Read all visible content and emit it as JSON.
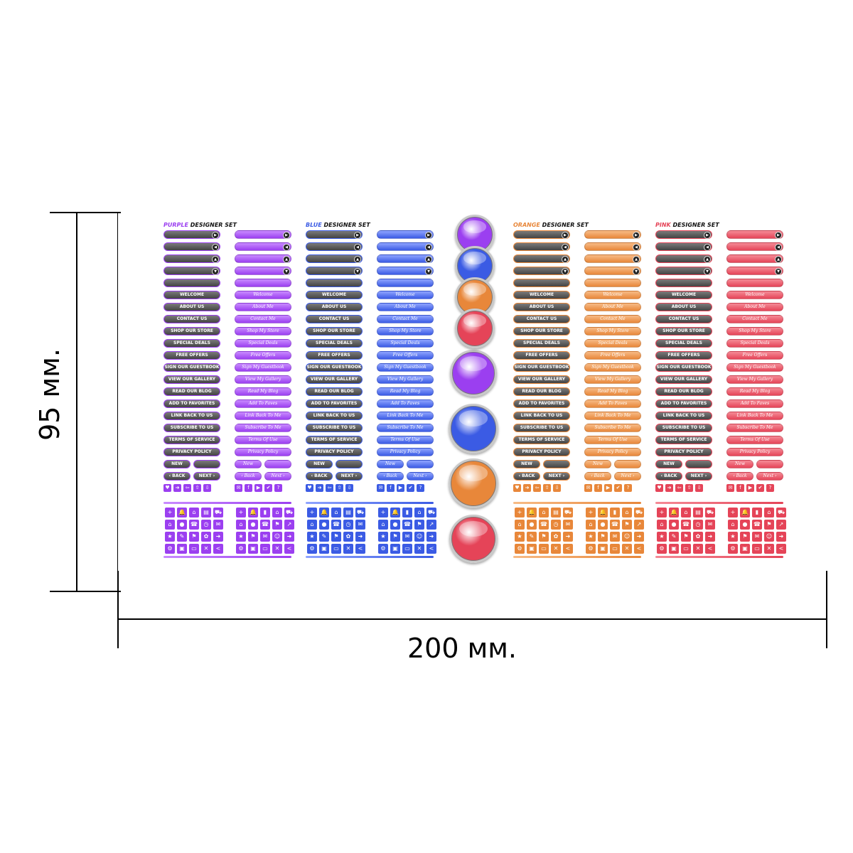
{
  "dimensions": {
    "height_label": "95 мм.",
    "width_label": "200 мм."
  },
  "sets": [
    {
      "prefix": "PURPLE",
      "suffix": " DESIGNER SET",
      "color": "#9b3ff0",
      "light": "#c98bff"
    },
    {
      "prefix": "BLUE",
      "suffix": " DESIGNER SET",
      "color": "#3b5be4",
      "light": "#8fa4ff"
    },
    {
      "prefix": "ORANGE",
      "suffix": " DESIGNER SET",
      "color": "#e8873a",
      "light": "#f7bb86"
    },
    {
      "prefix": "PINK",
      "suffix": " DESIGNER SET",
      "color": "#e54458",
      "light": "#f58a96"
    }
  ],
  "plain_buttons": [
    "WELCOME",
    "ABOUT US",
    "CONTACT US",
    "SHOP OUR STORE",
    "SPECIAL DEALS",
    "FREE OFFERS",
    "SIGN OUR GUESTBOOK",
    "VIEW OUR GALLERY",
    "READ OUR BLOG",
    "ADD TO FAVORITES",
    "LINK BACK TO US",
    "SUBSCRIBE TO US",
    "TERMS OF SERVICE",
    "PRIVACY POLICY"
  ],
  "plain_new": "NEW",
  "plain_back": "‹ BACK",
  "plain_next": "NEXT ›",
  "script_buttons": [
    "Welcome",
    "About Me",
    "Contact Me",
    "Shop My Store",
    "Special Deals",
    "Free Offers",
    "Sign My Guestbook",
    "View My Gallery",
    "Read My Blog",
    "Add To Faves",
    "Link Back To Me",
    "Subscribe To Me",
    "Terms Of Use",
    "Privacy Policy"
  ],
  "script_new": "New",
  "script_back": "‹ Back",
  "script_next": "Next ›",
  "circles": [
    "#9b3ff0",
    "#3b5be4",
    "#e8873a",
    "#e54458"
  ],
  "bar_icons": [
    "▶",
    "◀",
    "▲",
    "▼"
  ],
  "icon_row_left": [
    "♥",
    "➜",
    "⇦",
    "⇧",
    "⇩"
  ],
  "icon_row_right": [
    "✉",
    "f",
    "▶",
    "✔",
    "?"
  ],
  "grid_icons_left": [
    "+",
    "🔔",
    "⌂",
    "▤",
    "⛟",
    "⌂",
    "●",
    "☎",
    "◷",
    "✉",
    "★",
    "✎",
    "⚑",
    "✿",
    "➜",
    "⚙",
    "▣",
    "▭",
    "✕",
    "<"
  ],
  "grid_icons_right": [
    "+",
    "🔔",
    "▮",
    "⌂",
    "⛟",
    "⌂",
    "●",
    "☎",
    "⚑",
    "↗",
    "★",
    "⚑",
    "✉",
    "☺",
    "➜",
    "⚙",
    "▣",
    "▭",
    "✕",
    "<"
  ]
}
